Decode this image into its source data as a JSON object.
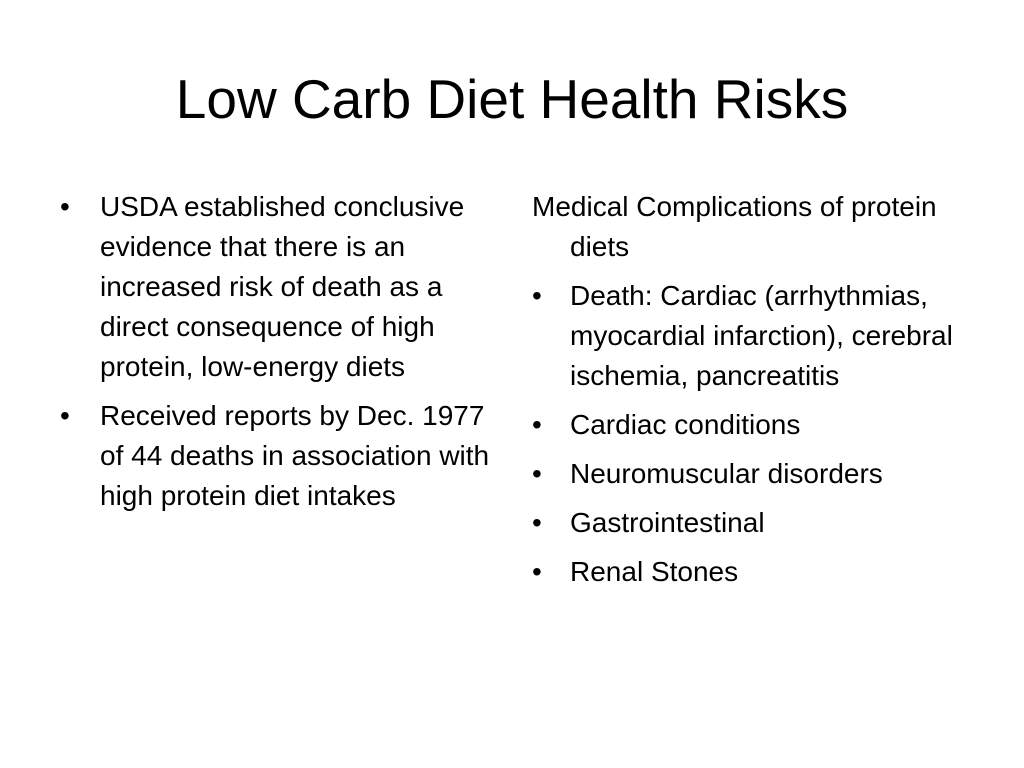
{
  "slide": {
    "title": "Low Carb Diet Health Risks",
    "left_column": {
      "bullets": [
        "USDA established conclusive evidence that there is an increased risk of death as a direct consequence of high protein, low-energy diets",
        "Received reports by Dec. 1977 of 44 deaths in association with high protein diet intakes"
      ]
    },
    "right_column": {
      "intro": "Medical Complications of protein diets",
      "bullets": [
        "Death: Cardiac (arrhythmias, myocardial infarction), cerebral ischemia, pancreatitis",
        "Cardiac conditions",
        "Neuromuscular disorders",
        "Gastrointestinal",
        "Renal Stones"
      ]
    },
    "bullet_symbol": "•"
  }
}
